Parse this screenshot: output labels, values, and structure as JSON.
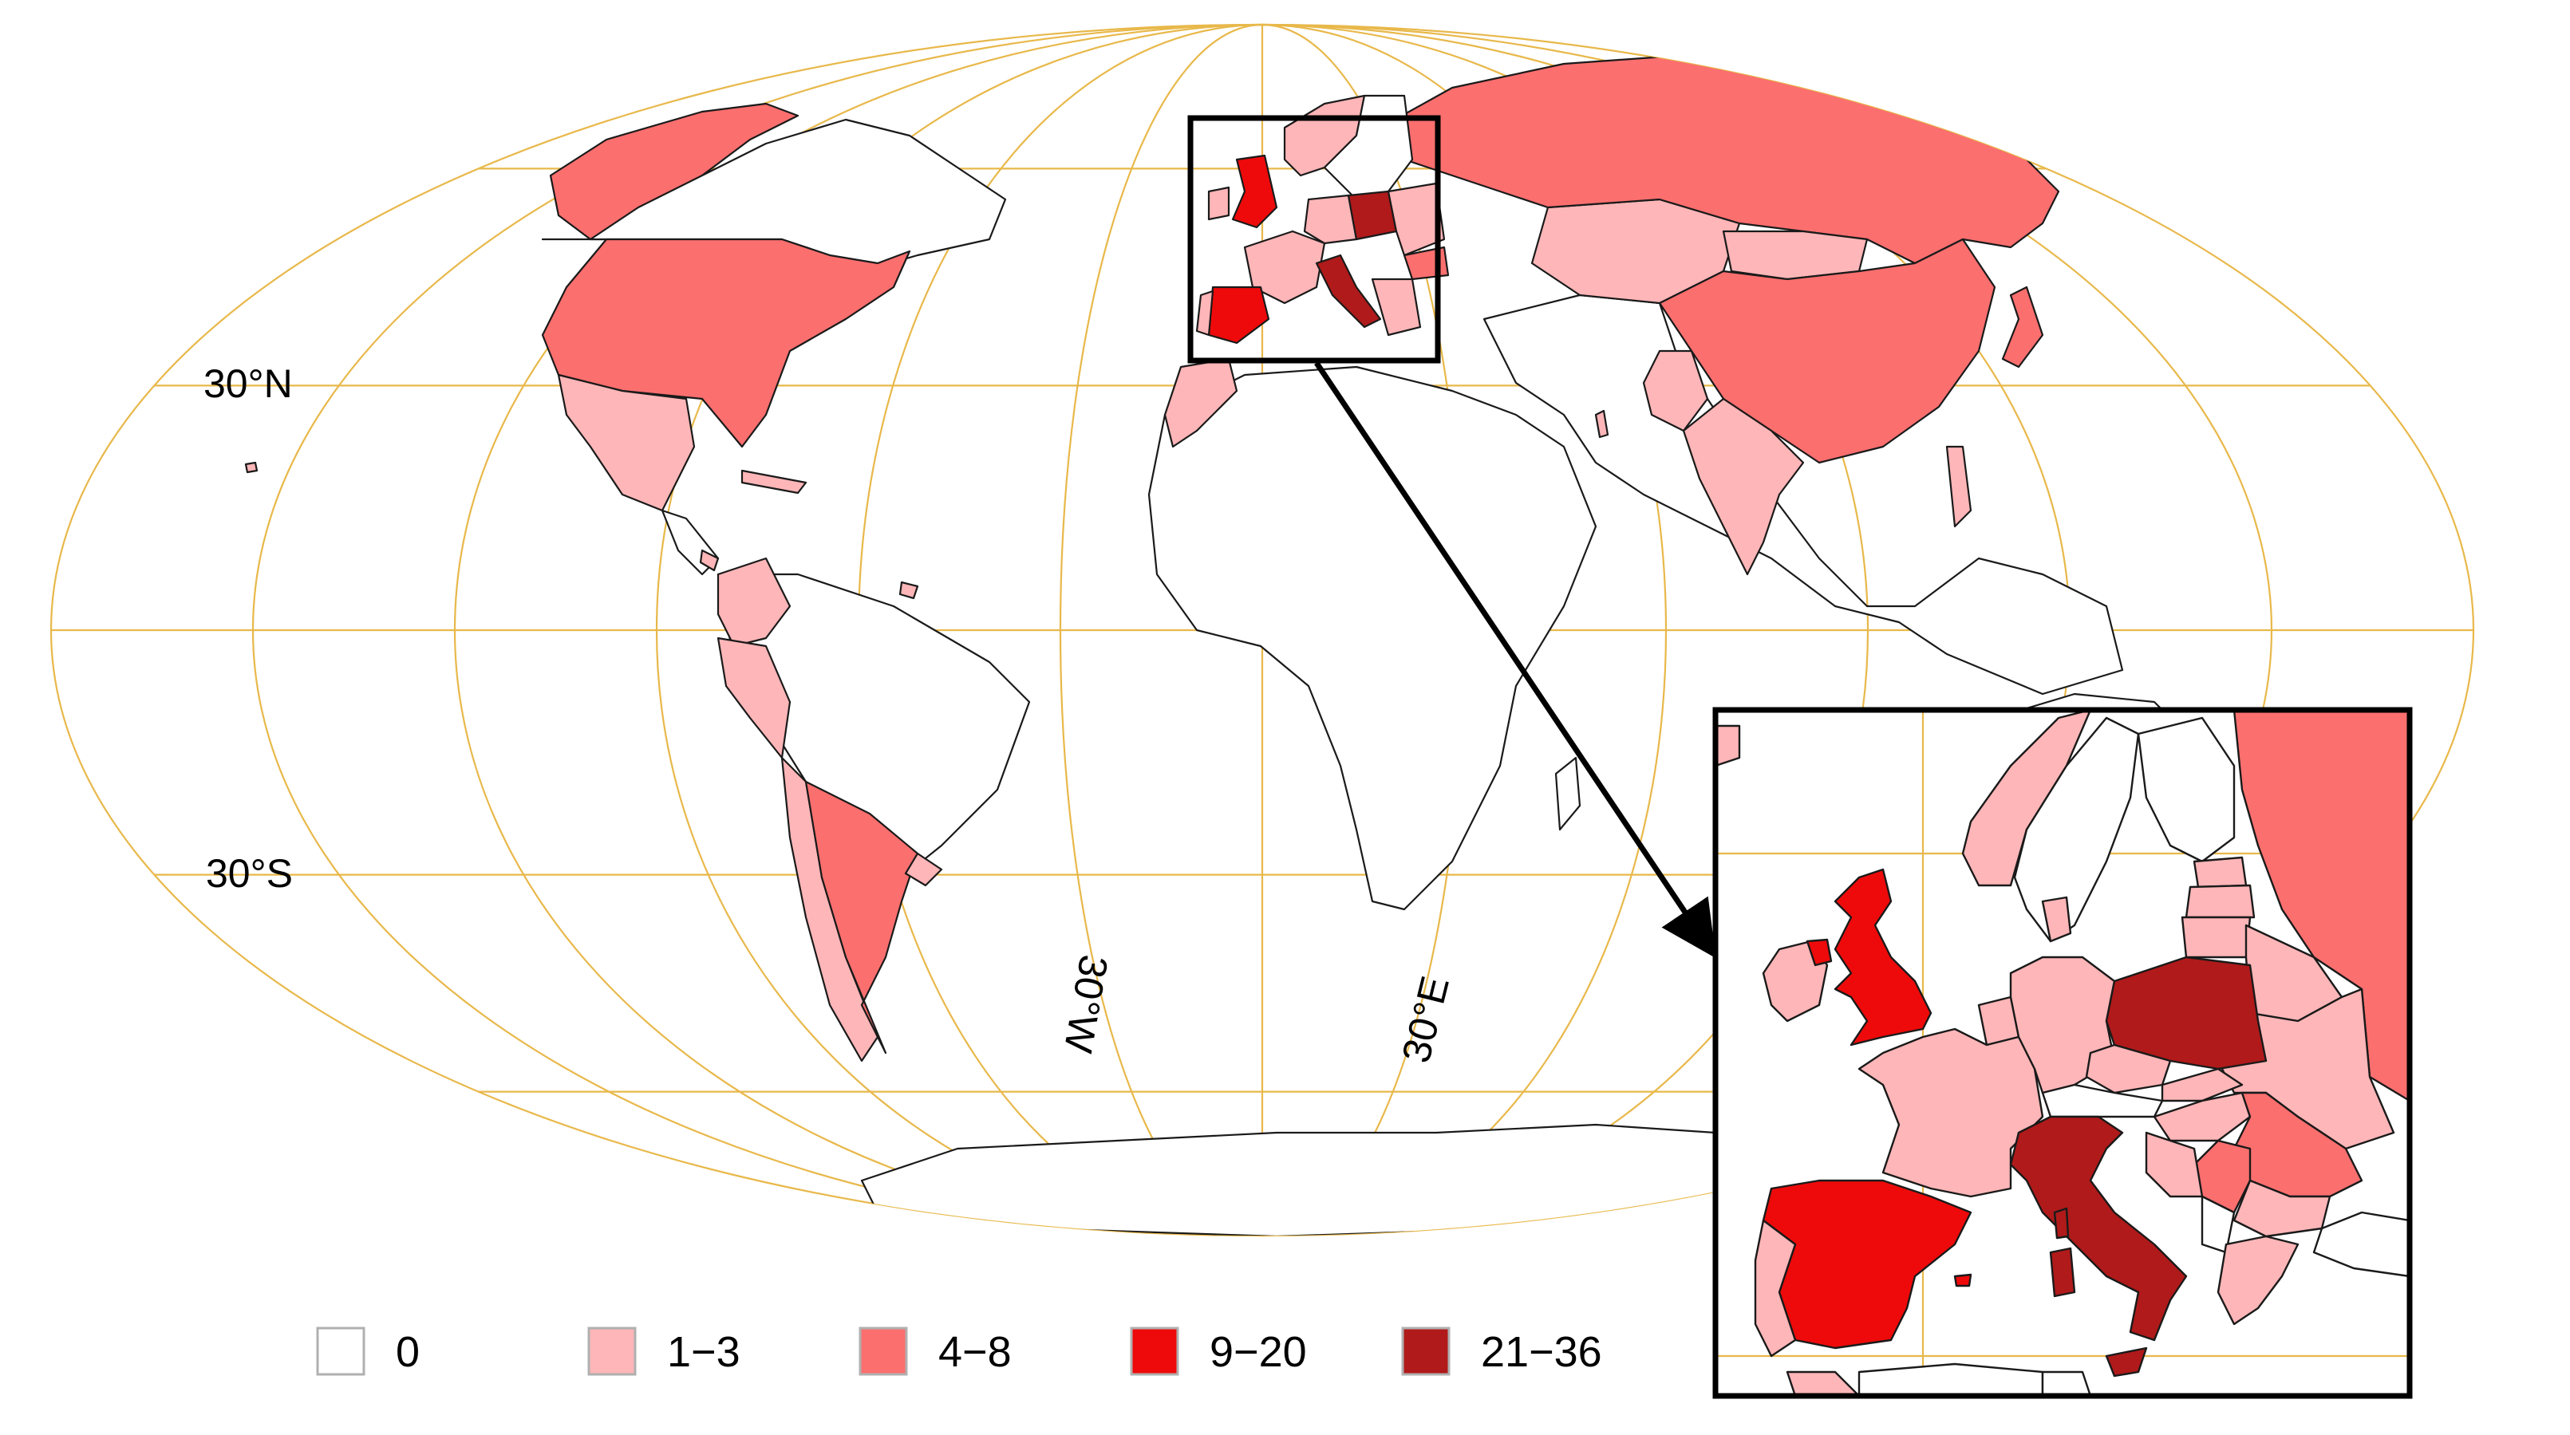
{
  "map": {
    "graticule_color": "#E8B84A",
    "border_color": "#1a1a1a",
    "lat_labels": [
      "30°N",
      "30°S"
    ],
    "lon_labels": [
      "30°W",
      "30°E"
    ],
    "inset_region": "Europe",
    "countries": [
      {
        "name": "United States",
        "bin": "4-8"
      },
      {
        "name": "Greenland",
        "bin": "4-8"
      },
      {
        "name": "Mexico",
        "bin": "1-3"
      },
      {
        "name": "Cuba",
        "bin": "1-3"
      },
      {
        "name": "Dominican Republic",
        "bin": "1-3"
      },
      {
        "name": "Costa Rica",
        "bin": "1-3"
      },
      {
        "name": "Colombia",
        "bin": "1-3"
      },
      {
        "name": "Ecuador",
        "bin": "1-3"
      },
      {
        "name": "Peru",
        "bin": "1-3"
      },
      {
        "name": "Chile",
        "bin": "1-3"
      },
      {
        "name": "Argentina",
        "bin": "4-8"
      },
      {
        "name": "Uruguay",
        "bin": "1-3"
      },
      {
        "name": "Russia",
        "bin": "4-8"
      },
      {
        "name": "China",
        "bin": "4-8"
      },
      {
        "name": "Kazakhstan",
        "bin": "1-3"
      },
      {
        "name": "Mongolia",
        "bin": "1-3"
      },
      {
        "name": "India",
        "bin": "1-3"
      },
      {
        "name": "Pakistan",
        "bin": "1-3"
      },
      {
        "name": "Japan",
        "bin": "4-8"
      },
      {
        "name": "Vietnam",
        "bin": "1-3"
      },
      {
        "name": "Morocco",
        "bin": "1-3"
      },
      {
        "name": "Israel",
        "bin": "1-3"
      },
      {
        "name": "United Kingdom",
        "bin": "9-20"
      },
      {
        "name": "Ireland",
        "bin": "1-3"
      },
      {
        "name": "Spain",
        "bin": "9-20"
      },
      {
        "name": "Portugal",
        "bin": "1-3"
      },
      {
        "name": "France",
        "bin": "1-3"
      },
      {
        "name": "Germany",
        "bin": "1-3"
      },
      {
        "name": "Italy",
        "bin": "21-36"
      },
      {
        "name": "Poland",
        "bin": "21-36"
      },
      {
        "name": "Norway",
        "bin": "1-3"
      },
      {
        "name": "Denmark",
        "bin": "1-3"
      },
      {
        "name": "Czechia",
        "bin": "1-3"
      },
      {
        "name": "Austria",
        "bin": "1-3"
      },
      {
        "name": "Hungary",
        "bin": "1-3"
      },
      {
        "name": "Romania",
        "bin": "4-8"
      },
      {
        "name": "Serbia",
        "bin": "4-8"
      },
      {
        "name": "Greece",
        "bin": "1-3"
      },
      {
        "name": "Belarus",
        "bin": "1-3"
      },
      {
        "name": "Ukraine",
        "bin": "1-3"
      },
      {
        "name": "Lithuania",
        "bin": "1-3"
      },
      {
        "name": "Latvia",
        "bin": "1-3"
      },
      {
        "name": "Estonia",
        "bin": "1-3"
      },
      {
        "name": "Malta",
        "bin": "9-20"
      }
    ]
  },
  "legend": {
    "items": [
      {
        "label": "0",
        "color": "#FFFFFF"
      },
      {
        "label": "1−3",
        "color": "#FFB6B8"
      },
      {
        "label": "4−8",
        "color": "#FB6F6F"
      },
      {
        "label": "9−20",
        "color": "#EE0A0A"
      },
      {
        "label": "21−36",
        "color": "#B01A1A"
      }
    ]
  }
}
